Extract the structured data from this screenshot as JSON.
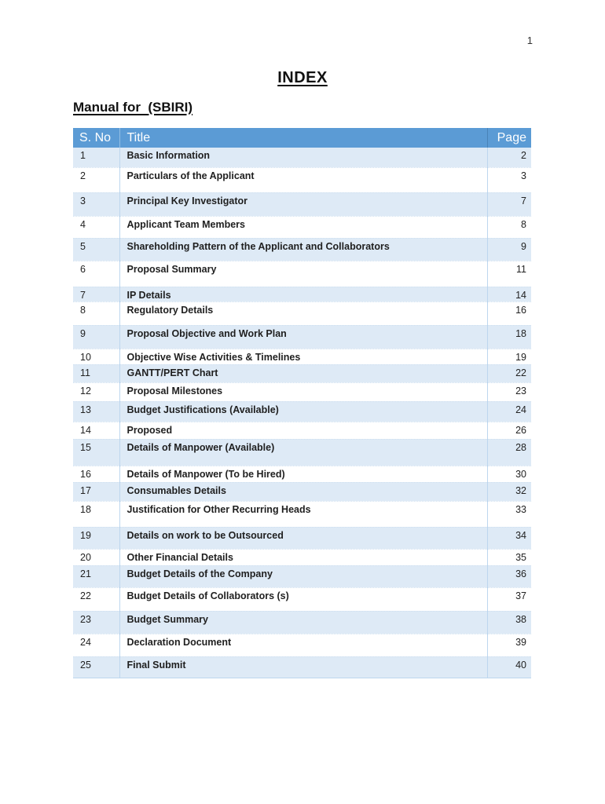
{
  "page": {
    "number": "1"
  },
  "heading": {
    "title": "INDEX",
    "subtitle": "Manual for  (SBIRI)"
  },
  "colors": {
    "header_bg": "#5b9bd5",
    "header_text": "#ffffff",
    "band_bg": "#deeaf6",
    "divider": "#bdd6ee",
    "body_text": "#1f1f1f"
  },
  "table": {
    "headers": {
      "sno": "S. No",
      "title": "Title",
      "page": "Page"
    },
    "rows": [
      {
        "sno": "1",
        "title": "Basic Information",
        "page": "2"
      },
      {
        "sno": "2",
        "title": "Particulars of the Applicant",
        "page": "3"
      },
      {
        "sno": "3",
        "title": "Principal Key Investigator",
        "page": "7"
      },
      {
        "sno": "4",
        "title": "Applicant Team Members",
        "page": "8"
      },
      {
        "sno": "5",
        "title": "Shareholding Pattern of the Applicant and Collaborators",
        "page": "9"
      },
      {
        "sno": "6",
        "title": "Proposal Summary",
        "page": "11"
      },
      {
        "sno": "7",
        "title": "IP Details",
        "page": "14"
      },
      {
        "sno": "8",
        "title": "Regulatory Details",
        "page": "16"
      },
      {
        "sno": "9",
        "title": "Proposal Objective and Work Plan",
        "page": "18"
      },
      {
        "sno": "10",
        "title": "Objective Wise Activities & Timelines",
        "page": "19"
      },
      {
        "sno": "11",
        "title": "GANTT/PERT Chart",
        "page": "22"
      },
      {
        "sno": "12",
        "title": "Proposal Milestones",
        "page": "23"
      },
      {
        "sno": "13",
        "title": "Budget Justifications (Available)",
        "page": "24"
      },
      {
        "sno": "14",
        "title": "Proposed",
        "page": "26"
      },
      {
        "sno": "15",
        "title": "Details of Manpower (Available)",
        "page": "28"
      },
      {
        "sno": "16",
        "title": "Details of Manpower (To be Hired)",
        "page": "30"
      },
      {
        "sno": "17",
        "title": "Consumables Details",
        "page": "32"
      },
      {
        "sno": "18",
        "title": "Justification for Other Recurring Heads",
        "page": "33"
      },
      {
        "sno": "19",
        "title": "Details on work to be Outsourced",
        "page": "34"
      },
      {
        "sno": "20",
        "title": "Other Financial Details",
        "page": "35"
      },
      {
        "sno": "21",
        "title": "Budget Details of the Company",
        "page": "36"
      },
      {
        "sno": "22",
        "title": "Budget Details of Collaborators (s)",
        "page": "37"
      },
      {
        "sno": "23",
        "title": "Budget Summary",
        "page": "38"
      },
      {
        "sno": "24",
        "title": "Declaration Document",
        "page": "39"
      },
      {
        "sno": "25",
        "title": "Final Submit",
        "page": "40"
      }
    ]
  }
}
